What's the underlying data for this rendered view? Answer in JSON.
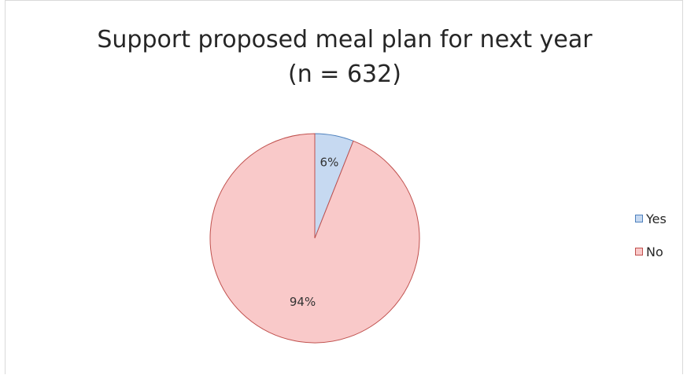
{
  "chart_data": {
    "type": "pie",
    "title_lines": [
      "Support proposed meal plan for next year",
      "(n = 632)"
    ],
    "slices": [
      {
        "label": "Yes",
        "value": 6,
        "data_label": "6%",
        "fill": "#c6d9f1",
        "stroke": "#4f81bd"
      },
      {
        "label": "No",
        "value": 94,
        "data_label": "94%",
        "fill": "#f9c9c9",
        "stroke": "#c0504d"
      }
    ],
    "legend_position": "right"
  }
}
